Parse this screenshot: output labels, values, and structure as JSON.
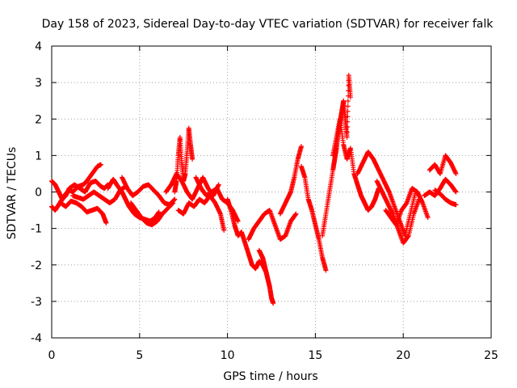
{
  "chart_data": {
    "type": "scatter",
    "title": "Day 158 of 2023, Sidereal Day-to-day VTEC variation (SDTVAR) for receiver falk",
    "xlabel": "GPS time / hours",
    "ylabel": "SDTVAR / TECUs",
    "xlim": [
      0,
      25
    ],
    "ylim": [
      -4,
      4
    ],
    "x_ticks": [
      0,
      5,
      10,
      15,
      20,
      25
    ],
    "y_ticks": [
      -4,
      -3,
      -2,
      -1,
      0,
      1,
      2,
      3,
      4
    ],
    "x_tick_labels": [
      "0",
      "5",
      "10",
      "15",
      "20",
      "25"
    ],
    "y_tick_labels": [
      "-4",
      "-3",
      "-2",
      "-1",
      "0",
      "1",
      "2",
      "3",
      "4"
    ],
    "grid": true,
    "marker": "+",
    "series": [
      {
        "name": "SDTVAR",
        "color": "#ff0000",
        "segments": [
          {
            "x": [
              0.0,
              0.2,
              0.4,
              0.6,
              0.8,
              1.0,
              1.2,
              1.5,
              1.8,
              2.0,
              2.3,
              2.6,
              2.8
            ],
            "y": [
              -0.4,
              -0.5,
              -0.35,
              -0.2,
              -0.05,
              0.05,
              0.0,
              0.15,
              0.2,
              0.3,
              0.5,
              0.7,
              0.75
            ]
          },
          {
            "x": [
              0.0,
              0.2,
              0.4,
              0.6,
              0.8,
              1.0,
              1.3,
              1.6,
              1.9,
              2.2,
              2.5,
              2.8,
              3.0,
              3.2
            ],
            "y": [
              0.3,
              0.2,
              0.0,
              -0.2,
              -0.1,
              0.1,
              0.2,
              0.1,
              0.0,
              0.25,
              0.3,
              0.15,
              0.1,
              0.2
            ]
          },
          {
            "x": [
              0.5,
              0.8,
              1.1,
              1.4,
              1.7,
              2.0,
              2.3,
              2.6,
              2.9,
              3.1
            ],
            "y": [
              -0.3,
              -0.4,
              -0.25,
              -0.3,
              -0.4,
              -0.55,
              -0.5,
              -0.45,
              -0.6,
              -0.85
            ]
          },
          {
            "x": [
              1.2,
              1.5,
              1.8,
              2.1,
              2.4,
              2.7,
              3.0,
              3.3,
              3.6,
              3.9,
              4.2
            ],
            "y": [
              -0.1,
              -0.15,
              -0.2,
              -0.1,
              0.0,
              -0.1,
              -0.2,
              -0.3,
              -0.2,
              0.05,
              0.15
            ]
          },
          {
            "x": [
              3.2,
              3.5,
              3.7,
              4.0,
              4.2,
              4.4,
              4.7,
              5.0,
              5.3,
              5.6,
              5.9,
              6.1
            ],
            "y": [
              0.1,
              0.35,
              0.2,
              0.0,
              -0.2,
              -0.4,
              -0.6,
              -0.7,
              -0.75,
              -0.8,
              -0.7,
              -0.55
            ]
          },
          {
            "x": [
              4.0,
              4.3,
              4.6,
              4.9,
              5.2,
              5.5,
              5.8,
              6.1,
              6.4,
              6.7,
              7.0
            ],
            "y": [
              0.4,
              0.1,
              -0.1,
              0.0,
              0.15,
              0.2,
              0.05,
              -0.1,
              -0.3,
              -0.35,
              -0.2
            ]
          },
          {
            "x": [
              4.5,
              4.8,
              5.1,
              5.4,
              5.7,
              6.0,
              6.3,
              6.6,
              6.9
            ],
            "y": [
              -0.3,
              -0.5,
              -0.7,
              -0.85,
              -0.9,
              -0.8,
              -0.6,
              -0.45,
              -0.3
            ]
          },
          {
            "x": [
              7.0,
              7.1,
              7.2,
              7.3,
              7.4,
              7.5,
              7.6,
              7.7,
              7.8,
              7.9,
              8.0
            ],
            "y": [
              0.0,
              0.3,
              1.0,
              1.5,
              0.8,
              0.3,
              0.5,
              1.1,
              1.75,
              1.3,
              0.9
            ]
          },
          {
            "x": [
              6.5,
              6.8,
              7.1,
              7.4,
              7.7,
              8.0,
              8.3,
              8.6,
              8.9,
              9.2,
              9.5
            ],
            "y": [
              0.0,
              0.2,
              0.5,
              0.3,
              0.0,
              -0.2,
              0.1,
              0.4,
              0.1,
              -0.1,
              0.2
            ]
          },
          {
            "x": [
              7.2,
              7.5,
              7.8,
              8.1,
              8.4,
              8.7,
              9.0,
              9.3,
              9.6,
              9.8
            ],
            "y": [
              -0.5,
              -0.6,
              -0.3,
              -0.4,
              -0.2,
              -0.3,
              -0.1,
              -0.3,
              -0.6,
              -1.05
            ]
          },
          {
            "x": [
              8.2,
              8.5,
              8.8,
              9.1,
              9.4,
              9.7,
              10.0,
              10.3,
              10.6
            ],
            "y": [
              0.4,
              0.1,
              -0.1,
              0.0,
              0.1,
              -0.2,
              -0.3,
              -0.5,
              -0.8
            ]
          },
          {
            "x": [
              10.0,
              10.2,
              10.4,
              10.6,
              10.8,
              11.0,
              11.2,
              11.4,
              11.6,
              11.8,
              12.0,
              12.2
            ],
            "y": [
              -0.2,
              -0.5,
              -0.9,
              -1.2,
              -1.1,
              -1.4,
              -1.7,
              -2.0,
              -2.1,
              -1.9,
              -2.0,
              -2.2
            ]
          },
          {
            "x": [
              11.8,
              12.0,
              12.1,
              12.2,
              12.3,
              12.4,
              12.5,
              12.6
            ],
            "y": [
              -1.6,
              -1.8,
              -2.0,
              -2.2,
              -2.4,
              -2.6,
              -2.9,
              -3.05
            ]
          },
          {
            "x": [
              11.2,
              11.5,
              11.8,
              12.1,
              12.4,
              12.7,
              13.0,
              13.3,
              13.6,
              13.9
            ],
            "y": [
              -1.3,
              -1.0,
              -0.8,
              -0.6,
              -0.5,
              -0.9,
              -1.3,
              -1.2,
              -0.8,
              -0.6
            ]
          },
          {
            "x": [
              13.0,
              13.3,
              13.6,
              13.8,
              14.0,
              14.2
            ],
            "y": [
              -0.6,
              -0.3,
              0.0,
              0.4,
              0.9,
              1.25
            ]
          },
          {
            "x": [
              14.2,
              14.4,
              14.6,
              14.8,
              15.0,
              15.2,
              15.4,
              15.6
            ],
            "y": [
              0.7,
              0.4,
              -0.2,
              -0.5,
              -0.9,
              -1.3,
              -1.8,
              -2.15
            ]
          },
          {
            "x": [
              15.4,
              15.6,
              15.8,
              16.0,
              16.1,
              16.2,
              16.3,
              16.4,
              16.5,
              16.6,
              16.7,
              16.8,
              16.9,
              17.0
            ],
            "y": [
              -1.2,
              -0.6,
              0.0,
              0.6,
              0.9,
              1.2,
              1.6,
              1.9,
              2.2,
              2.5,
              2.0,
              1.5,
              3.2,
              2.6
            ]
          },
          {
            "x": [
              16.0,
              16.2,
              16.4,
              16.6,
              16.8,
              17.0,
              17.2,
              17.4,
              17.6,
              17.8,
              18.0,
              18.2,
              18.4,
              18.6
            ],
            "y": [
              1.0,
              1.5,
              2.0,
              1.3,
              0.9,
              1.2,
              0.5,
              0.2,
              -0.1,
              -0.3,
              -0.5,
              -0.4,
              -0.2,
              0.1
            ]
          },
          {
            "x": [
              17.4,
              17.7,
              18.0,
              18.3,
              18.6,
              18.9,
              19.2,
              19.5,
              19.8,
              20.1,
              20.4,
              20.7
            ],
            "y": [
              0.5,
              0.8,
              1.1,
              0.9,
              0.6,
              0.3,
              0.0,
              -0.4,
              -0.8,
              -1.2,
              -0.6,
              0.0
            ]
          },
          {
            "x": [
              18.5,
              18.8,
              19.1,
              19.4,
              19.7,
              20.0,
              20.3,
              20.6,
              20.9
            ],
            "y": [
              0.3,
              0.0,
              -0.3,
              -0.6,
              -1.0,
              -1.4,
              -1.2,
              -0.6,
              -0.2
            ]
          },
          {
            "x": [
              19.0,
              19.3,
              19.6,
              19.9,
              20.2,
              20.5,
              20.8,
              21.1,
              21.4
            ],
            "y": [
              -0.5,
              -0.7,
              -0.9,
              -0.5,
              -0.3,
              0.1,
              0.0,
              -0.3,
              -0.7
            ]
          },
          {
            "x": [
              21.5,
              21.8,
              22.1,
              22.4,
              22.7,
              23.0
            ],
            "y": [
              0.6,
              0.75,
              0.5,
              1.0,
              0.8,
              0.5
            ]
          },
          {
            "x": [
              21.2,
              21.5,
              21.8,
              22.1,
              22.4,
              22.7,
              23.0
            ],
            "y": [
              -0.1,
              0.0,
              -0.1,
              0.1,
              0.35,
              0.2,
              0.0
            ]
          },
          {
            "x": [
              21.8,
              22.1,
              22.4,
              22.7,
              23.0
            ],
            "y": [
              0.05,
              -0.05,
              -0.2,
              -0.3,
              -0.35
            ]
          }
        ]
      }
    ]
  }
}
